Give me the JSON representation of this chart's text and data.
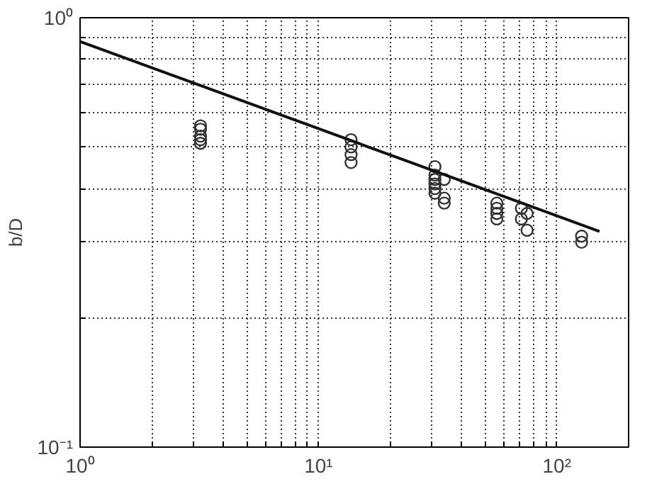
{
  "chart_data": {
    "type": "scatter",
    "ylabel": "b/D",
    "log": "xy",
    "grid": true,
    "marker": "circle",
    "xlim": [
      1,
      200
    ],
    "ylim": [
      0.1,
      1
    ],
    "xticks": [
      {
        "value": 1,
        "label": "10⁰"
      },
      {
        "value": 2,
        "label": null
      },
      {
        "value": 3,
        "label": null
      },
      {
        "value": 4,
        "label": null
      },
      {
        "value": 5,
        "label": null
      },
      {
        "value": 6,
        "label": null
      },
      {
        "value": 7,
        "label": null
      },
      {
        "value": 8,
        "label": null
      },
      {
        "value": 9,
        "label": null
      },
      {
        "value": 10,
        "label": "10¹"
      },
      {
        "value": 20,
        "label": null
      },
      {
        "value": 30,
        "label": null
      },
      {
        "value": 40,
        "label": null
      },
      {
        "value": 50,
        "label": null
      },
      {
        "value": 60,
        "label": null
      },
      {
        "value": 70,
        "label": null
      },
      {
        "value": 80,
        "label": null
      },
      {
        "value": 90,
        "label": null
      },
      {
        "value": 100,
        "label": "10²"
      }
    ],
    "yticks": [
      {
        "value": 0.1,
        "label": "10⁻¹"
      },
      {
        "value": 0.2,
        "label": null
      },
      {
        "value": 0.3,
        "label": null
      },
      {
        "value": 0.4,
        "label": null
      },
      {
        "value": 0.5,
        "label": null
      },
      {
        "value": 0.6,
        "label": null
      },
      {
        "value": 0.7,
        "label": null
      },
      {
        "value": 0.8,
        "label": null
      },
      {
        "value": 0.9,
        "label": null
      },
      {
        "value": 1,
        "label": "10⁰"
      }
    ],
    "series": [
      {
        "color": "#333333",
        "x": [
          3.2,
          3.2,
          3.2,
          3.2,
          3.2,
          13.7,
          13.7,
          13.7,
          13.7,
          30.8,
          30.8,
          30.8,
          30.8,
          30.8,
          30.8,
          33.7,
          33.7,
          33.7,
          56,
          56,
          56,
          56,
          71,
          71,
          75,
          75,
          127,
          127
        ],
        "values": [
          0.56,
          0.55,
          0.53,
          0.52,
          0.51,
          0.52,
          0.5,
          0.48,
          0.46,
          0.45,
          0.43,
          0.42,
          0.41,
          0.4,
          0.39,
          0.42,
          0.38,
          0.37,
          0.37,
          0.36,
          0.35,
          0.34,
          0.36,
          0.34,
          0.35,
          0.32,
          0.31,
          0.3
        ]
      },
      {
        "type": "line",
        "color": "#111111",
        "marker": "none",
        "x": [
          1,
          151
        ],
        "values": [
          0.88,
          0.318
        ]
      }
    ]
  }
}
